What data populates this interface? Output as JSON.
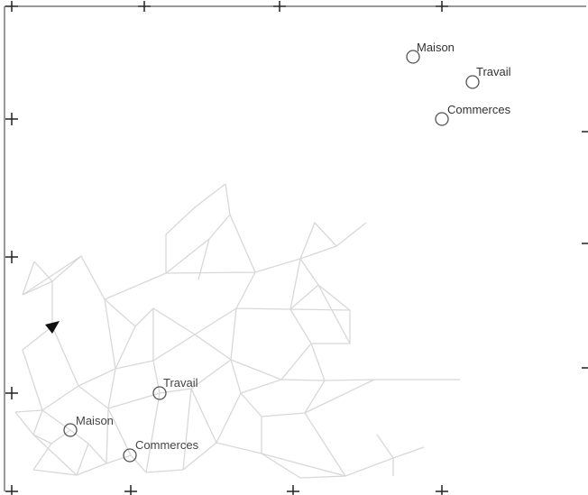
{
  "legend_places": [
    {
      "label": "Maison"
    },
    {
      "label": "Travail"
    },
    {
      "label": "Commerces"
    }
  ],
  "map_places": [
    {
      "label": "Travail"
    },
    {
      "label": "Maison"
    },
    {
      "label": "Commerces"
    }
  ]
}
